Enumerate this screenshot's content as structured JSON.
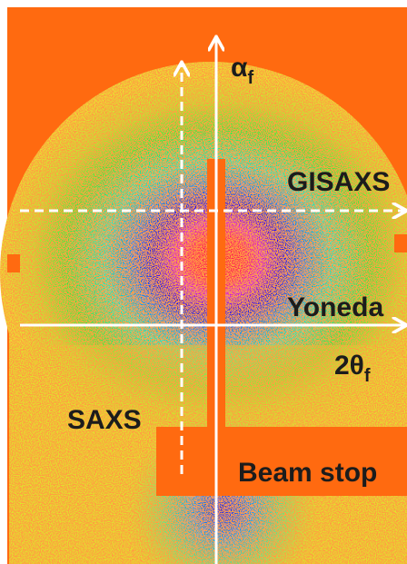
{
  "labels": {
    "alpha_f": {
      "base": "α",
      "sub": "f"
    },
    "gisaxs": "GISAXS",
    "yoneda": "Yoneda",
    "two_theta_f": {
      "base": "2θ",
      "sub": "f"
    },
    "saxs": "SAXS",
    "beam_stop": "Beam stop"
  }
}
